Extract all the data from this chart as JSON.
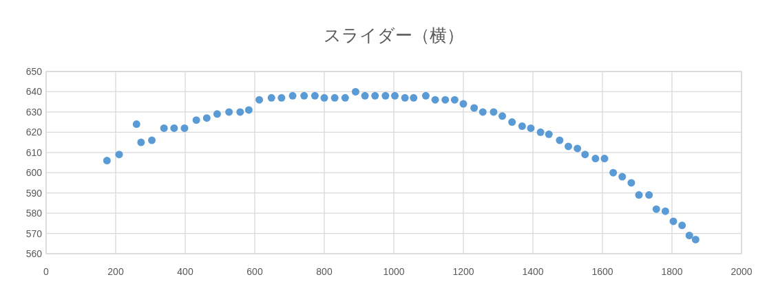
{
  "chart_data": {
    "type": "scatter",
    "title": "スライダー（横）",
    "x": [
      175,
      210,
      260,
      273,
      304,
      339,
      368,
      398,
      432,
      462,
      492,
      526,
      558,
      583,
      613,
      648,
      677,
      709,
      742,
      773,
      800,
      830,
      860,
      890,
      917,
      946,
      976,
      1003,
      1032,
      1057,
      1092,
      1119,
      1148,
      1175,
      1200,
      1231,
      1256,
      1287,
      1312,
      1340,
      1369,
      1394,
      1422,
      1446,
      1477,
      1502,
      1528,
      1550,
      1580,
      1606,
      1631,
      1657,
      1683,
      1705,
      1734,
      1755,
      1781,
      1804,
      1829,
      1850,
      1868
    ],
    "series": [
      {
        "color": "#5b9bd5",
        "values": [
          606,
          609,
          624,
          615,
          616,
          622,
          622,
          622,
          626,
          627,
          629,
          630,
          630,
          631,
          636,
          637,
          637,
          638,
          638,
          638,
          637,
          637,
          637,
          640,
          638,
          638,
          638,
          638,
          637,
          637,
          638,
          636,
          636,
          636,
          634,
          632,
          630,
          630,
          628,
          625,
          623,
          622,
          620,
          619,
          616,
          613,
          612,
          609,
          607,
          607,
          600,
          598,
          595,
          589,
          589,
          582,
          581,
          576,
          574,
          569,
          567
        ]
      }
    ],
    "xlim": [
      0,
      2000
    ],
    "xticks": [
      0,
      200,
      400,
      600,
      800,
      1000,
      1200,
      1400,
      1600,
      1800,
      2000
    ],
    "ylim": [
      560,
      650
    ],
    "yticks": [
      560,
      570,
      580,
      590,
      600,
      610,
      620,
      630,
      640,
      650
    ],
    "grid": true,
    "marker": "circle"
  }
}
